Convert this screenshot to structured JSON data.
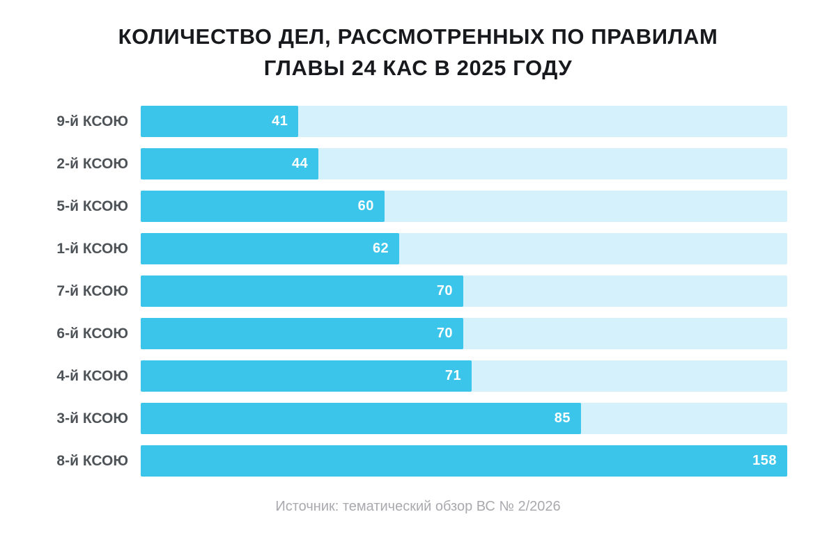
{
  "title": {
    "line1": "КОЛИЧЕСТВО ДЕЛ, РАССМОТРЕННЫХ ПО ПРАВИЛАМ",
    "line2": "ГЛАВЫ 24 КАС В 2025 ГОДУ"
  },
  "source": {
    "text": "Источник: тематический обзор ВС № 2/2026"
  },
  "colors": {
    "bar_fill": "#3BC5EB",
    "bar_track": "#D5F1FB",
    "title_text": "#17191D",
    "category_text": "#4E5358",
    "value_text": "#FFFFFF",
    "source_text": "#A9A9AE",
    "background": "#FFFFFF"
  },
  "chart_data": {
    "type": "bar",
    "orientation": "horizontal",
    "title": "КОЛИЧЕСТВО ДЕЛ, РАССМОТРЕННЫХ ПО ПРАВИЛАМ ГЛАВЫ 24 КАС В 2025 ГОДУ",
    "categories": [
      "9-й КСОЮ",
      "2-й КСОЮ",
      "5-й КСОЮ",
      "1-й КСОЮ",
      "7-й КСОЮ",
      "6-й КСОЮ",
      "4-й КСОЮ",
      "3-й КСОЮ",
      "8-й КСОЮ"
    ],
    "values": [
      41,
      44,
      60,
      62,
      70,
      70,
      71,
      85,
      158
    ],
    "bar_width_percent": [
      24.4,
      27.5,
      37.7,
      40.0,
      49.9,
      49.9,
      51.2,
      68.1,
      100
    ],
    "xlim": [
      0,
      158
    ],
    "grid": false,
    "legend": false,
    "value_label_position": "inside-end",
    "source": "Источник: тематический обзор ВС № 2/2026"
  }
}
